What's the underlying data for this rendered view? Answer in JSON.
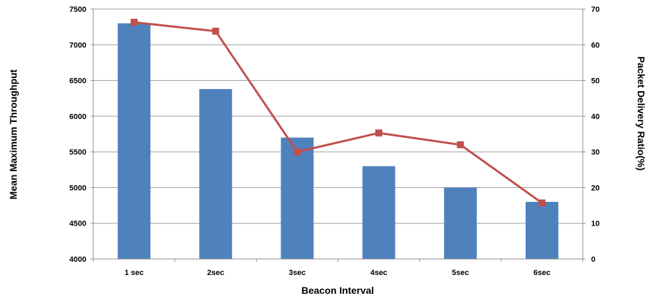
{
  "chart_data": {
    "type": "bar+line",
    "title": "",
    "xlabel": "Beacon Interval",
    "ylabel": "Mean Maximum Throughput",
    "y2label": "Packet Delivery Ratio(%)",
    "categories": [
      "1 sec",
      "2sec",
      "3sec",
      "4sec",
      "5sec",
      "6sec"
    ],
    "ylim": [
      4000,
      7500
    ],
    "y2lim": [
      0,
      70
    ],
    "yticks": [
      "4000",
      "4500",
      "5000",
      "5500",
      "6000",
      "6500",
      "7000",
      "7500"
    ],
    "y2ticks": [
      "0",
      "10",
      "20",
      "30",
      "40",
      "50",
      "60",
      "70"
    ],
    "grid": true,
    "series": [
      {
        "kind": "bar",
        "axis": "left",
        "color": "#4f81bd",
        "values": [
          7300,
          6380,
          5700,
          5300,
          5000,
          4800
        ]
      },
      {
        "kind": "line",
        "axis": "right",
        "color": "#c0504d",
        "marker": "square",
        "values": [
          66.3,
          63.8,
          30.0,
          35.3,
          32.0,
          15.7
        ]
      }
    ]
  }
}
